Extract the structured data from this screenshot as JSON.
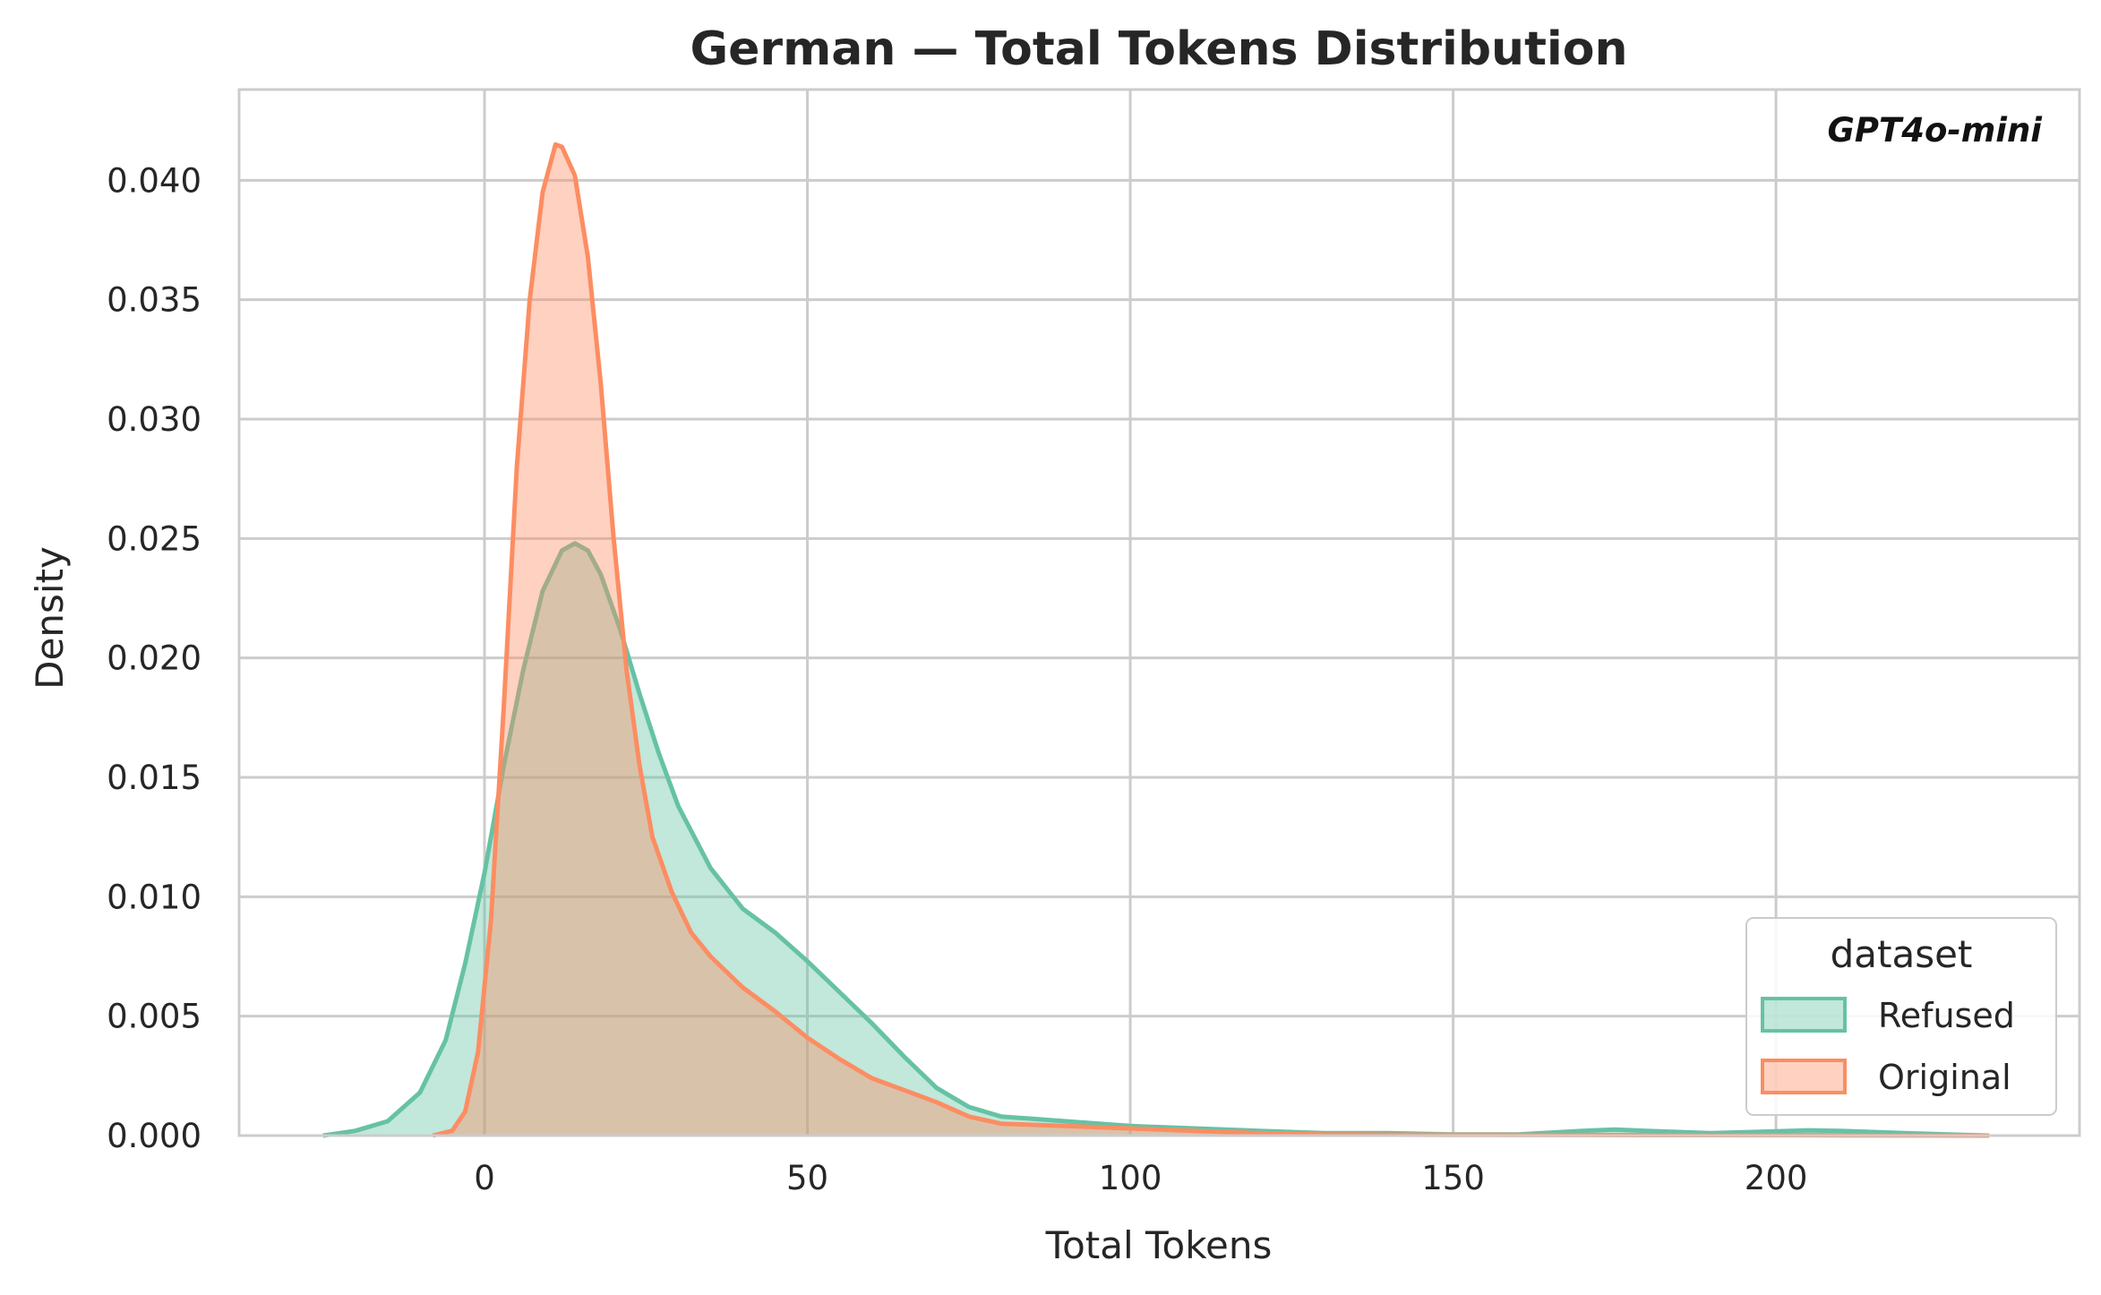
{
  "chart_data": {
    "type": "area",
    "title": "German — Total Tokens Distribution",
    "xlabel": "Total Tokens",
    "ylabel": "Density",
    "annotation": "GPT4o-mini",
    "xlim": [
      -38,
      247
    ],
    "ylim": [
      0,
      0.0438
    ],
    "x_ticks": [
      0,
      50,
      100,
      150,
      200
    ],
    "x_tick_labels": [
      "0",
      "50",
      "100",
      "150",
      "200"
    ],
    "y_ticks": [
      0,
      0.005,
      0.01,
      0.015,
      0.02,
      0.025,
      0.03,
      0.035,
      0.04
    ],
    "y_tick_labels": [
      "0.000",
      "0.005",
      "0.010",
      "0.015",
      "0.020",
      "0.025",
      "0.030",
      "0.035",
      "0.040"
    ],
    "grid": true,
    "legend": {
      "title": "dataset",
      "position": "bottom-right"
    },
    "series": [
      {
        "name": "Refused",
        "color": "#66c2a5",
        "points": [
          [
            -25,
            0
          ],
          [
            -20,
            0.0002
          ],
          [
            -15,
            0.0006
          ],
          [
            -10,
            0.0018
          ],
          [
            -6,
            0.004
          ],
          [
            -3,
            0.0072
          ],
          [
            0,
            0.011
          ],
          [
            3,
            0.0155
          ],
          [
            6,
            0.0195
          ],
          [
            9,
            0.0228
          ],
          [
            12,
            0.0245
          ],
          [
            14,
            0.0248
          ],
          [
            16,
            0.0245
          ],
          [
            18,
            0.0235
          ],
          [
            21,
            0.0212
          ],
          [
            24,
            0.0185
          ],
          [
            27,
            0.016
          ],
          [
            30,
            0.0138
          ],
          [
            35,
            0.0112
          ],
          [
            40,
            0.0095
          ],
          [
            45,
            0.0085
          ],
          [
            50,
            0.0073
          ],
          [
            55,
            0.006
          ],
          [
            60,
            0.0047
          ],
          [
            65,
            0.0033
          ],
          [
            70,
            0.002
          ],
          [
            75,
            0.0012
          ],
          [
            80,
            0.0008
          ],
          [
            90,
            0.0006
          ],
          [
            100,
            0.0004
          ],
          [
            110,
            0.0003
          ],
          [
            120,
            0.0002
          ],
          [
            130,
            0.0001
          ],
          [
            140,
            0.0001
          ],
          [
            150,
            5e-05
          ],
          [
            160,
            5e-05
          ],
          [
            170,
            0.0002
          ],
          [
            175,
            0.00025
          ],
          [
            180,
            0.0002
          ],
          [
            190,
            0.0001
          ],
          [
            200,
            0.00018
          ],
          [
            205,
            0.00022
          ],
          [
            210,
            0.0002
          ],
          [
            220,
            0.0001
          ],
          [
            233,
            0
          ]
        ]
      },
      {
        "name": "Original",
        "color": "#fc8d62",
        "points": [
          [
            -8,
            0
          ],
          [
            -5,
            0.0002
          ],
          [
            -3,
            0.001
          ],
          [
            -1,
            0.0035
          ],
          [
            1,
            0.009
          ],
          [
            3,
            0.018
          ],
          [
            5,
            0.028
          ],
          [
            7,
            0.035
          ],
          [
            9,
            0.0395
          ],
          [
            11,
            0.0415
          ],
          [
            12,
            0.0414
          ],
          [
            14,
            0.0402
          ],
          [
            16,
            0.0368
          ],
          [
            18,
            0.0315
          ],
          [
            20,
            0.025
          ],
          [
            22,
            0.0195
          ],
          [
            24,
            0.0155
          ],
          [
            26,
            0.0125
          ],
          [
            29,
            0.0102
          ],
          [
            32,
            0.0085
          ],
          [
            35,
            0.0075
          ],
          [
            40,
            0.0062
          ],
          [
            45,
            0.0052
          ],
          [
            50,
            0.0041
          ],
          [
            55,
            0.0032
          ],
          [
            60,
            0.0024
          ],
          [
            65,
            0.0019
          ],
          [
            70,
            0.0014
          ],
          [
            75,
            0.0008
          ],
          [
            80,
            0.0005
          ],
          [
            90,
            0.0004
          ],
          [
            100,
            0.0003
          ],
          [
            110,
            0.0002
          ],
          [
            120,
            0.0001
          ],
          [
            130,
            5e-05
          ],
          [
            150,
            3e-05
          ],
          [
            180,
            2e-05
          ],
          [
            210,
            1e-05
          ],
          [
            233,
            0
          ]
        ]
      }
    ]
  }
}
